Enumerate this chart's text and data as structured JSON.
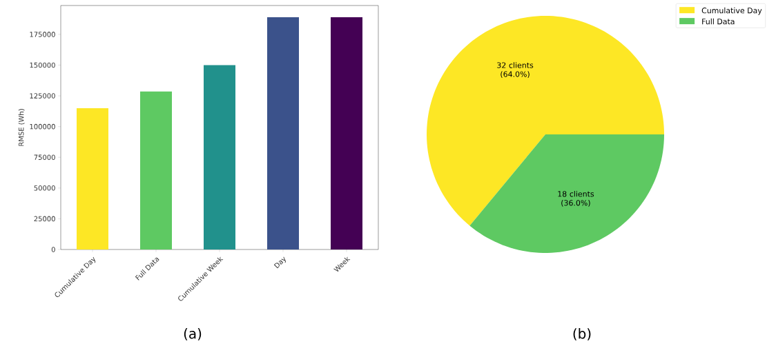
{
  "chart_data": [
    {
      "type": "bar",
      "ylabel": "RMSE (Wh)",
      "categories": [
        "Cumulative Day",
        "Full Data",
        "Cumulative Week",
        "Day",
        "Week"
      ],
      "values": [
        115000,
        128500,
        150000,
        189000,
        189000
      ],
      "colors": [
        "#fde725",
        "#5ec962",
        "#21918c",
        "#3b528b",
        "#440154"
      ],
      "ylim": [
        0,
        198500
      ],
      "yticks": [
        0,
        25000,
        50000,
        75000,
        100000,
        125000,
        150000,
        175000
      ],
      "grid": false,
      "annotations": [
        "(a)"
      ]
    },
    {
      "type": "pie",
      "categories": [
        "Cumulative Day",
        "Full Data"
      ],
      "values": [
        32,
        18
      ],
      "colors": [
        "#fde725",
        "#5ec962"
      ],
      "value_labels": [
        "32 clients (64.0%)",
        "18 clients (36.0%)"
      ],
      "legend": "top right",
      "annotations": [
        "(b)"
      ]
    }
  ]
}
